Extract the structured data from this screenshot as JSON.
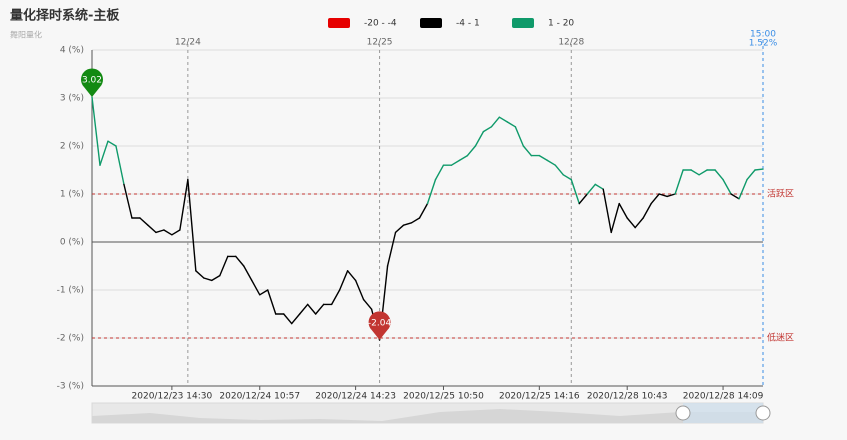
{
  "chart_data": {
    "type": "line",
    "title": "量化择时系统-主板",
    "subtitle": "舞阳量化",
    "pieces": [
      {
        "min": -20,
        "max": -4,
        "label": "-20 - -4",
        "color": "#e60000"
      },
      {
        "min": -4,
        "max": 1,
        "label": "-4 - 1",
        "color": "#000000"
      },
      {
        "min": 1,
        "max": 20,
        "label": "1 - 20",
        "color": "#0f9a6a"
      }
    ],
    "categories": [
      null,
      null,
      null,
      null,
      null,
      null,
      null,
      null,
      null,
      null,
      "2020/12/23 14:30",
      null,
      null,
      null,
      null,
      null,
      null,
      null,
      null,
      null,
      null,
      "2020/12/24 10:57",
      null,
      null,
      null,
      null,
      null,
      null,
      null,
      null,
      null,
      null,
      null,
      "2020/12/24 14:23",
      null,
      null,
      null,
      null,
      null,
      null,
      null,
      null,
      null,
      null,
      "2020/12/25 10:50",
      null,
      null,
      null,
      null,
      null,
      null,
      null,
      null,
      null,
      null,
      null,
      "2020/12/25 14:16",
      null,
      null,
      null,
      null,
      null,
      null,
      null,
      null,
      null,
      null,
      "2020/12/28 10:43",
      null,
      null,
      null,
      null,
      null,
      null,
      null,
      null,
      null,
      null,
      null,
      "2020/12/28 14:09",
      null,
      null,
      null,
      null,
      null
    ],
    "series": [
      {
        "values": [
          3.02,
          1.6,
          2.1,
          2.0,
          1.2,
          0.5,
          0.5,
          0.35,
          0.2,
          0.25,
          0.15,
          0.25,
          1.3,
          -0.6,
          -0.75,
          -0.8,
          -0.7,
          -0.3,
          -0.3,
          -0.5,
          -0.8,
          -1.1,
          -1.0,
          -1.5,
          -1.5,
          -1.7,
          -1.5,
          -1.3,
          -1.5,
          -1.3,
          -1.3,
          -1.0,
          -0.6,
          -0.8,
          -1.2,
          -1.4,
          -2.04,
          -0.5,
          0.2,
          0.35,
          0.4,
          0.5,
          0.8,
          1.3,
          1.6,
          1.6,
          1.7,
          1.8,
          2.0,
          2.3,
          2.4,
          2.6,
          2.5,
          2.4,
          2.0,
          1.8,
          1.8,
          1.7,
          1.6,
          1.4,
          1.3,
          0.8,
          1.0,
          1.2,
          1.1,
          0.2,
          0.8,
          0.5,
          0.3,
          0.5,
          0.8,
          1.0,
          0.95,
          1.0,
          1.5,
          1.5,
          1.4,
          1.5,
          1.5,
          1.3,
          1.0,
          0.9,
          1.3,
          1.5,
          1.52
        ]
      }
    ],
    "day_markers": [
      {
        "index": 12,
        "label": "12/24"
      },
      {
        "index": 36,
        "label": "12/25"
      },
      {
        "index": 60,
        "label": "12/28"
      }
    ],
    "end_label": {
      "time": "15:00",
      "value": 1.52,
      "label": "1.52%"
    },
    "mark_points": [
      {
        "value": 3.02,
        "label": "3.02",
        "color": "#138a13"
      },
      {
        "value": -2.04,
        "label": "-2.04",
        "color": "#c23531"
      }
    ],
    "mark_lines": [
      {
        "value": 1,
        "label": "活跃区"
      },
      {
        "value": -2,
        "label": "低迷区"
      }
    ],
    "ylim": [
      -3,
      4
    ],
    "yticks": [
      {
        "value": -3,
        "label": "-3 (%)"
      },
      {
        "value": -2,
        "label": "-2 (%)"
      },
      {
        "value": -1,
        "label": "-1 (%)"
      },
      {
        "value": 0,
        "label": "0 (%)"
      },
      {
        "value": 1,
        "label": "1 (%)"
      },
      {
        "value": 2,
        "label": "2 (%)"
      },
      {
        "value": 3,
        "label": "3 (%)"
      },
      {
        "value": 4,
        "label": "4 (%)"
      }
    ],
    "grid": true
  }
}
